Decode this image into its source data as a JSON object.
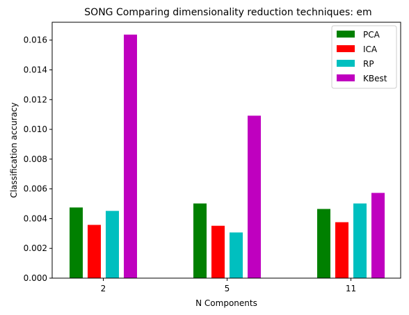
{
  "chart_data": {
    "type": "bar",
    "title": "SONG Comparing dimensionality reduction techniques: em",
    "xlabel": "N Components",
    "ylabel": "Classification accuracy",
    "categories": [
      "2",
      "5",
      "11"
    ],
    "series": [
      {
        "name": "PCA",
        "color": "#008000",
        "values": [
          0.00475,
          0.00502,
          0.00465
        ]
      },
      {
        "name": "ICA",
        "color": "#ff0000",
        "values": [
          0.00358,
          0.00352,
          0.00376
        ]
      },
      {
        "name": "RP",
        "color": "#00bfbf",
        "values": [
          0.00452,
          0.00307,
          0.00502
        ]
      },
      {
        "name": "KBest",
        "color": "#bf00bf",
        "values": [
          0.01637,
          0.01092,
          0.00573
        ]
      }
    ],
    "ylim": [
      0,
      0.0172
    ],
    "yticks": [
      "0.000",
      "0.002",
      "0.004",
      "0.006",
      "0.008",
      "0.010",
      "0.012",
      "0.014",
      "0.016"
    ],
    "grid": false,
    "legend_position": "top-right"
  }
}
